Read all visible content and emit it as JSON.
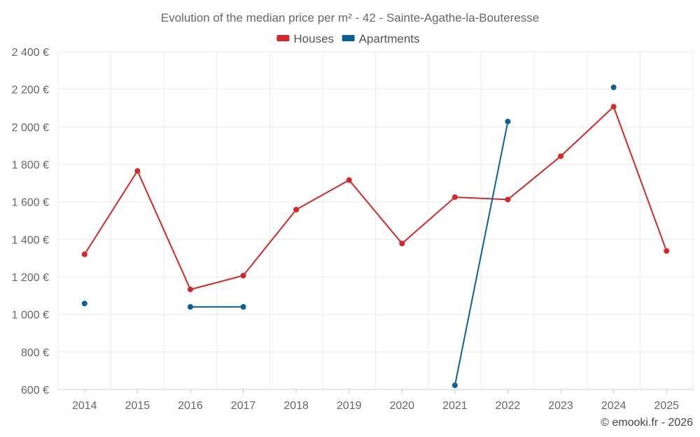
{
  "chart_data": {
    "type": "line",
    "title": "Evolution of the median price per m² - 42 - Sainte-Agathe-la-Bouteresse",
    "categories": [
      "2014",
      "2015",
      "2016",
      "2017",
      "2018",
      "2019",
      "2020",
      "2021",
      "2022",
      "2023",
      "2024",
      "2025"
    ],
    "series": [
      {
        "name": "Houses",
        "color": "#d62728",
        "values": [
          1320,
          1765,
          1133,
          1207,
          1558,
          1716,
          1378,
          1625,
          1612,
          1843,
          2107,
          1338
        ]
      },
      {
        "name": "Apartments",
        "color": "#0a6196",
        "values": [
          1058,
          null,
          1040,
          1040,
          null,
          null,
          null,
          622,
          2028,
          null,
          2210,
          null
        ]
      }
    ],
    "ylim": [
      600,
      2400
    ],
    "yticks": [
      600,
      800,
      1000,
      1200,
      1400,
      1600,
      1800,
      2000,
      2200,
      2400
    ],
    "ytick_labels": [
      "600 €",
      "800 €",
      "1 000 €",
      "1 200 €",
      "1 400 €",
      "1 600 €",
      "1 800 €",
      "2 000 €",
      "2 200 €",
      "2 400 €"
    ],
    "xlabel": "",
    "ylabel": "",
    "grid": true,
    "legend_position": "top-center"
  },
  "credit": "© emooki.fr - 2026"
}
